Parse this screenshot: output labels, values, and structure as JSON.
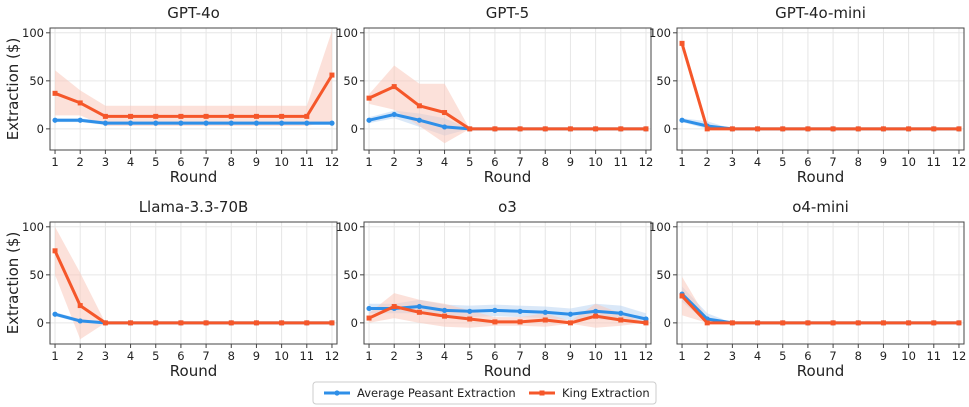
{
  "chart_data": {
    "type": "line",
    "layout": "2x3 small multiples",
    "xlabel": "Round",
    "ylabel": "Extraction ($)",
    "x": [
      1,
      2,
      3,
      4,
      5,
      6,
      7,
      8,
      9,
      10,
      11,
      12
    ],
    "xlim": [
      0.8,
      12.2
    ],
    "ylim": [
      -22,
      105
    ],
    "yticks": [
      0,
      50,
      100
    ],
    "grid": true,
    "legend": {
      "position": "bottom-center",
      "entries": [
        "Average Peasant Extraction",
        "King Extraction"
      ]
    },
    "colors": {
      "Average Peasant Extraction": "#2e8fe8",
      "King Extraction": "#f5572a",
      "peasant_band": "#bcd6f2",
      "king_band": "#f9c9bb",
      "grid": "#e6e6e6",
      "axis": "#444444"
    },
    "panels": [
      {
        "title": "GPT-4o",
        "series": [
          {
            "name": "Average Peasant Extraction",
            "values": [
              9,
              9,
              6,
              6,
              6,
              6,
              6,
              6,
              6,
              6,
              6,
              6
            ],
            "lower": [
              7,
              7,
              4,
              4,
              4,
              4,
              4,
              4,
              4,
              4,
              4,
              4
            ],
            "upper": [
              11,
              11,
              8,
              8,
              8,
              8,
              8,
              8,
              8,
              8,
              8,
              8
            ]
          },
          {
            "name": "King Extraction",
            "values": [
              37,
              27,
              13,
              13,
              13,
              13,
              13,
              13,
              13,
              13,
              13,
              56
            ],
            "lower": [
              14,
              14,
              3,
              3,
              3,
              3,
              3,
              3,
              3,
              3,
              3,
              8
            ],
            "upper": [
              61,
              40,
              24,
              24,
              24,
              24,
              24,
              24,
              24,
              24,
              24,
              102
            ]
          }
        ]
      },
      {
        "title": "GPT-5",
        "series": [
          {
            "name": "Average Peasant Extraction",
            "values": [
              9,
              15,
              9,
              2,
              0,
              0,
              0,
              0,
              0,
              0,
              0,
              0
            ],
            "lower": [
              6,
              11,
              2,
              -7,
              0,
              0,
              0,
              0,
              0,
              0,
              0,
              0
            ],
            "upper": [
              12,
              19,
              16,
              11,
              0,
              0,
              0,
              0,
              0,
              0,
              0,
              0
            ]
          },
          {
            "name": "King Extraction",
            "values": [
              32,
              44,
              24,
              17,
              0,
              0,
              0,
              0,
              0,
              0,
              0,
              0
            ],
            "lower": [
              26,
              20,
              3,
              -15,
              0,
              0,
              0,
              0,
              0,
              0,
              0,
              0
            ],
            "upper": [
              36,
              66,
              47,
              47,
              0,
              0,
              0,
              0,
              0,
              0,
              0,
              0
            ]
          }
        ]
      },
      {
        "title": "GPT-4o-mini",
        "series": [
          {
            "name": "Average Peasant Extraction",
            "values": [
              9,
              3,
              0,
              0,
              0,
              0,
              0,
              0,
              0,
              0,
              0,
              0
            ],
            "lower": [
              7,
              0,
              0,
              0,
              0,
              0,
              0,
              0,
              0,
              0,
              0,
              0
            ],
            "upper": [
              11,
              8,
              0,
              0,
              0,
              0,
              0,
              0,
              0,
              0,
              0,
              0
            ]
          },
          {
            "name": "King Extraction",
            "values": [
              89,
              0,
              0,
              0,
              0,
              0,
              0,
              0,
              0,
              0,
              0,
              0
            ],
            "lower": [
              87,
              0,
              0,
              0,
              0,
              0,
              0,
              0,
              0,
              0,
              0,
              0
            ],
            "upper": [
              91,
              0,
              0,
              0,
              0,
              0,
              0,
              0,
              0,
              0,
              0,
              0
            ]
          }
        ]
      },
      {
        "title": "Llama-3.3-70B",
        "series": [
          {
            "name": "Average Peasant Extraction",
            "values": [
              9,
              2,
              0,
              0,
              0,
              0,
              0,
              0,
              0,
              0,
              0,
              0
            ],
            "lower": [
              7,
              0,
              0,
              0,
              0,
              0,
              0,
              0,
              0,
              0,
              0,
              0
            ],
            "upper": [
              11,
              4,
              0,
              0,
              0,
              0,
              0,
              0,
              0,
              0,
              0,
              0
            ]
          },
          {
            "name": "King Extraction",
            "values": [
              75,
              18,
              0,
              0,
              0,
              0,
              0,
              0,
              0,
              0,
              0,
              0
            ],
            "lower": [
              50,
              -17,
              0,
              0,
              0,
              0,
              0,
              0,
              0,
              0,
              0,
              0
            ],
            "upper": [
              100,
              52,
              0,
              0,
              0,
              0,
              0,
              0,
              0,
              0,
              0,
              0
            ]
          }
        ]
      },
      {
        "title": "o3",
        "series": [
          {
            "name": "Average Peasant Extraction",
            "values": [
              15,
              15,
              17,
              13,
              12,
              13,
              12,
              11,
              9,
              12,
              10,
              4
            ],
            "lower": [
              10,
              10,
              10,
              7,
              6,
              7,
              6,
              5,
              3,
              4,
              2,
              -2
            ],
            "upper": [
              20,
              20,
              24,
              19,
              18,
              19,
              18,
              17,
              15,
              20,
              18,
              10
            ]
          },
          {
            "name": "King Extraction",
            "values": [
              5,
              17,
              11,
              7,
              4,
              1,
              1,
              3,
              0,
              7,
              3,
              0
            ],
            "lower": [
              0,
              5,
              0,
              -4,
              -5,
              -3,
              -3,
              -4,
              -1,
              -5,
              -3,
              0
            ],
            "upper": [
              10,
              31,
              24,
              20,
              13,
              6,
              6,
              10,
              2,
              20,
              10,
              0
            ]
          }
        ]
      },
      {
        "title": "o4-mini",
        "series": [
          {
            "name": "Average Peasant Extraction",
            "values": [
              30,
              4,
              0,
              0,
              0,
              0,
              0,
              0,
              0,
              0,
              0,
              0
            ],
            "lower": [
              22,
              0,
              0,
              0,
              0,
              0,
              0,
              0,
              0,
              0,
              0,
              0
            ],
            "upper": [
              38,
              10,
              0,
              0,
              0,
              0,
              0,
              0,
              0,
              0,
              0,
              0
            ]
          },
          {
            "name": "King Extraction",
            "values": [
              28,
              0,
              0,
              0,
              0,
              0,
              0,
              0,
              0,
              0,
              0,
              0
            ],
            "lower": [
              8,
              0,
              0,
              0,
              0,
              0,
              0,
              0,
              0,
              0,
              0,
              0
            ],
            "upper": [
              48,
              4,
              0,
              0,
              0,
              0,
              0,
              0,
              0,
              0,
              0,
              0
            ]
          }
        ]
      }
    ]
  }
}
